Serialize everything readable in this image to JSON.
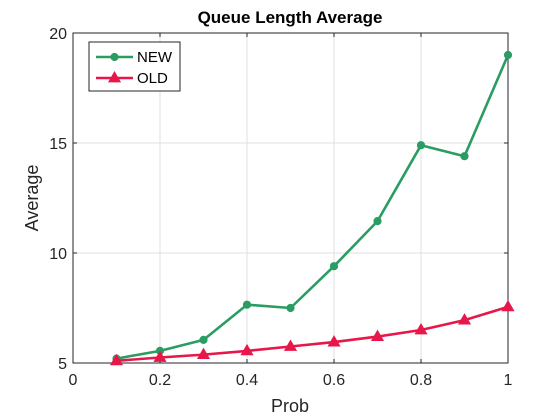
{
  "chart_data": {
    "type": "line",
    "title": "Queue Length Average",
    "xlabel": "Prob",
    "ylabel": "Average",
    "xlim": [
      0,
      1
    ],
    "ylim": [
      5,
      20
    ],
    "xticks": [
      0,
      0.2,
      0.4,
      0.6,
      0.8,
      1
    ],
    "xtick_labels": [
      "0",
      "0.2",
      "0.4",
      "0.6",
      "0.8",
      "1"
    ],
    "yticks": [
      5,
      10,
      15,
      20
    ],
    "ytick_labels": [
      "5",
      "10",
      "15",
      "20"
    ],
    "grid": true,
    "legend_position": "top-left",
    "x": [
      0.1,
      0.2,
      0.3,
      0.4,
      0.5,
      0.6,
      0.7,
      0.8,
      0.9,
      1.0
    ],
    "series": [
      {
        "name": "NEW",
        "color": "#2a9d63",
        "marker": "circle",
        "values": [
          5.2,
          5.55,
          6.05,
          7.65,
          7.5,
          9.4,
          11.45,
          14.9,
          14.4,
          19.0
        ]
      },
      {
        "name": "OLD",
        "color": "#e8174a",
        "marker": "triangle",
        "values": [
          5.1,
          5.25,
          5.38,
          5.55,
          5.75,
          5.95,
          6.2,
          6.5,
          6.95,
          7.55
        ]
      }
    ]
  }
}
